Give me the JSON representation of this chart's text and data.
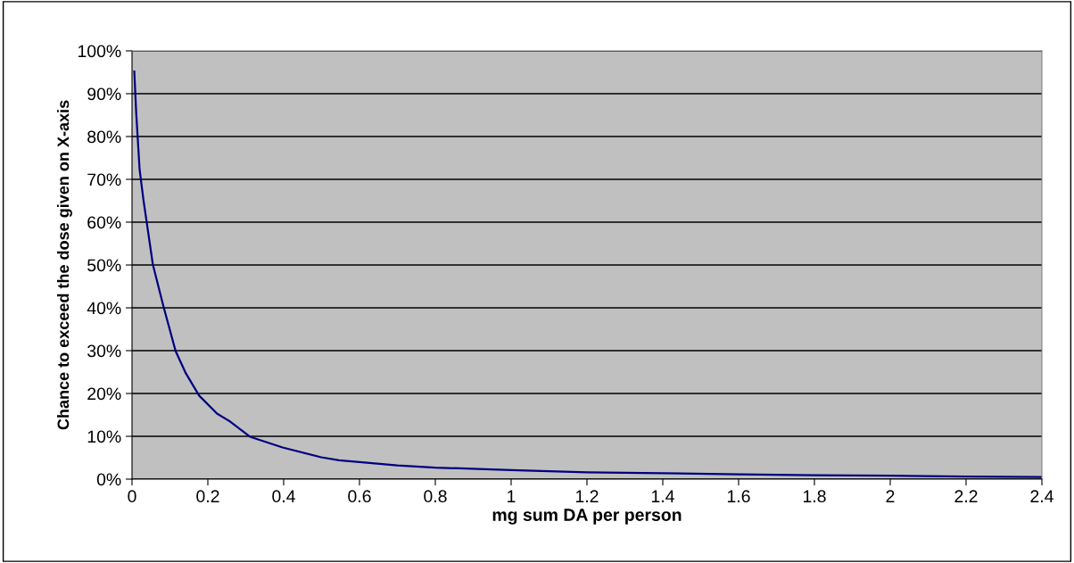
{
  "chart_data": {
    "type": "line",
    "xlabel": "mg sum DA per person",
    "ylabel": "Chance to exceed the dose given on X-axis",
    "x": [
      0.006,
      0.011,
      0.02,
      0.03,
      0.055,
      0.083,
      0.115,
      0.142,
      0.177,
      0.224,
      0.256,
      0.311,
      0.397,
      0.499,
      0.546,
      0.6,
      0.7,
      0.8,
      1.0,
      1.2,
      1.4,
      1.6,
      1.8,
      2.0,
      2.2,
      2.4
    ],
    "series": [
      {
        "color": "#000080",
        "values": [
          95.2,
          85.6,
          72.3,
          65.3,
          50.1,
          40.3,
          29.9,
          24.7,
          19.5,
          15.3,
          13.6,
          9.9,
          7.4,
          5.1,
          4.4,
          4.0,
          3.2,
          2.7,
          2.1,
          1.6,
          1.4,
          1.1,
          0.9,
          0.8,
          0.6,
          0.5
        ]
      }
    ],
    "xlim": [
      0,
      2.4
    ],
    "xticks": [
      0,
      0.2,
      0.4,
      0.6,
      0.8,
      1,
      1.2,
      1.4,
      1.6,
      1.8,
      2,
      2.2,
      2.4
    ],
    "ylim": [
      0,
      100
    ],
    "yticks": [
      {
        "value": 0,
        "label": "0%"
      },
      {
        "value": 10,
        "label": "10%"
      },
      {
        "value": 20,
        "label": "20%"
      },
      {
        "value": 30,
        "label": "30%"
      },
      {
        "value": 40,
        "label": "40%"
      },
      {
        "value": 50,
        "label": "50%"
      },
      {
        "value": 60,
        "label": "60%"
      },
      {
        "value": 70,
        "label": "70%"
      },
      {
        "value": 80,
        "label": "80%"
      },
      {
        "value": 90,
        "label": "90%"
      },
      {
        "value": 100,
        "label": "100%"
      }
    ],
    "grid": "y",
    "marker": "none",
    "line_style": "solid"
  }
}
